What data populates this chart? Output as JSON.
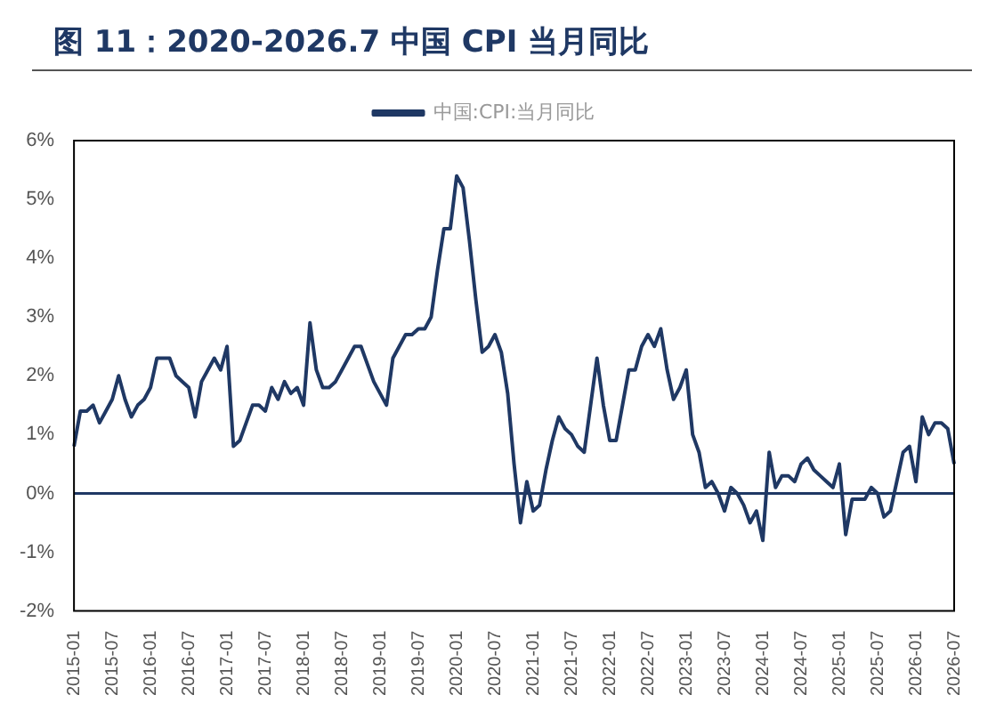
{
  "chart_data": {
    "type": "line",
    "title": "图 11：2020-2026.7 中国 CPI 当月同比",
    "categories": [
      "2015-01",
      null,
      null,
      null,
      null,
      null,
      "2015-07",
      null,
      null,
      null,
      null,
      null,
      "2016-01",
      null,
      null,
      null,
      null,
      null,
      "2016-07",
      null,
      null,
      null,
      null,
      null,
      "2017-01",
      null,
      null,
      null,
      null,
      null,
      "2017-07",
      null,
      null,
      null,
      null,
      null,
      "2018-01",
      null,
      null,
      null,
      null,
      null,
      "2018-07",
      null,
      null,
      null,
      null,
      null,
      "2019-01",
      null,
      null,
      null,
      null,
      null,
      "2019-07",
      null,
      null,
      null,
      null,
      null,
      "2020-01",
      null,
      null,
      null,
      null,
      null,
      "2020-07",
      null,
      null,
      null,
      null,
      null,
      "2021-01",
      null,
      null,
      null,
      null,
      null,
      "2021-07",
      null,
      null,
      null,
      null,
      null,
      "2022-01",
      null,
      null,
      null,
      null,
      null,
      "2022-07",
      null,
      null,
      null,
      null,
      null,
      "2023-01",
      null,
      null,
      null,
      null,
      null,
      "2023-07",
      null,
      null,
      null,
      null,
      null,
      "2024-01",
      null,
      null,
      null,
      null,
      null,
      "2024-07",
      null,
      null,
      null,
      null,
      null,
      "2025-01",
      null,
      null,
      null,
      null,
      null,
      "2025-07",
      null,
      null,
      null,
      null,
      null,
      "2026-01",
      null,
      null,
      null,
      null,
      null,
      "2026-07"
    ],
    "series": [
      {
        "name": "中国:CPI:当月同比",
        "color": "#1f3864",
        "values": [
          0.8,
          1.4,
          1.4,
          1.5,
          1.2,
          1.4,
          1.6,
          2.0,
          1.6,
          1.3,
          1.5,
          1.6,
          1.8,
          2.3,
          2.3,
          2.3,
          2.0,
          1.9,
          1.8,
          1.3,
          1.9,
          2.1,
          2.3,
          2.1,
          2.5,
          0.8,
          0.9,
          1.2,
          1.5,
          1.5,
          1.4,
          1.8,
          1.6,
          1.9,
          1.7,
          1.8,
          1.5,
          2.9,
          2.1,
          1.8,
          1.8,
          1.9,
          2.1,
          2.3,
          2.5,
          2.5,
          2.2,
          1.9,
          1.7,
          1.5,
          2.3,
          2.5,
          2.7,
          2.7,
          2.8,
          2.8,
          3.0,
          3.8,
          4.5,
          4.5,
          5.4,
          5.2,
          4.3,
          3.3,
          2.4,
          2.5,
          2.7,
          2.4,
          1.7,
          0.5,
          -0.5,
          0.2,
          -0.3,
          -0.2,
          0.4,
          0.9,
          1.3,
          1.1,
          1.0,
          0.8,
          0.7,
          1.5,
          2.3,
          1.5,
          0.9,
          0.9,
          1.5,
          2.1,
          2.1,
          2.5,
          2.7,
          2.5,
          2.8,
          2.1,
          1.6,
          1.8,
          2.1,
          1.0,
          0.7,
          0.1,
          0.2,
          0.0,
          -0.3,
          0.1,
          0.0,
          -0.2,
          -0.5,
          -0.3,
          -0.8,
          0.7,
          0.1,
          0.3,
          0.3,
          0.2,
          0.5,
          0.6,
          0.4,
          0.3,
          0.2,
          0.1,
          0.5,
          -0.7,
          -0.1,
          -0.1,
          -0.1,
          0.1,
          0.0,
          -0.4,
          -0.3,
          0.2,
          0.7,
          0.8,
          0.2,
          1.3,
          1.0,
          1.2,
          1.2,
          1.1,
          0.5
        ]
      }
    ],
    "ylim": [
      -2,
      6
    ],
    "yticks": [
      {
        "value": -2,
        "label": "-2%"
      },
      {
        "value": -1,
        "label": "-1%"
      },
      {
        "value": 0,
        "label": "0%"
      },
      {
        "value": 1,
        "label": "1%"
      },
      {
        "value": 2,
        "label": "2%"
      },
      {
        "value": 3,
        "label": "3%"
      },
      {
        "value": 4,
        "label": "4%"
      },
      {
        "value": 5,
        "label": "5%"
      },
      {
        "value": 6,
        "label": "6%"
      }
    ],
    "ref_lines": [
      {
        "axis": "y",
        "value": 0,
        "color": "#1f3864"
      }
    ],
    "legend": "top",
    "grid": false,
    "marker": "none",
    "line_style": "solid"
  }
}
